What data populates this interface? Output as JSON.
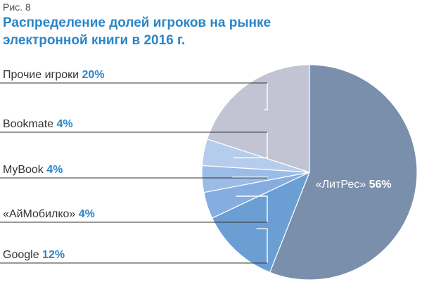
{
  "figure": {
    "label": "Рис. 8",
    "title": "Распределение долей игроков на рынке электронной книги в 2016 г."
  },
  "chart_data": {
    "type": "pie",
    "title": "Распределение долей игроков на рынке электронной книги в 2016 г.",
    "start_angle_deg": 0,
    "direction": "clockwise",
    "slices": [
      {
        "label": "«ЛитРес»",
        "value": 56,
        "value_label": "56%",
        "color": "#7a8fab"
      },
      {
        "label": "Google",
        "value": 12,
        "value_label": "12%",
        "color": "#6b9fd4"
      },
      {
        "label": "«АйМобилко»",
        "value": 4,
        "value_label": "4%",
        "color": "#86ade0"
      },
      {
        "label": "MyBook",
        "value": 4,
        "value_label": "4%",
        "color": "#9bbce6"
      },
      {
        "label": "Bookmate",
        "value": 4,
        "value_label": "4%",
        "color": "#b6cced"
      },
      {
        "label": "Прочие игроки",
        "value": 20,
        "value_label": "20%",
        "color": "#c2c4d3"
      }
    ],
    "label_color": "#333333",
    "value_color": "#2a85c7",
    "callout_line_color": "#ffffff",
    "rule_color": "#333333"
  }
}
